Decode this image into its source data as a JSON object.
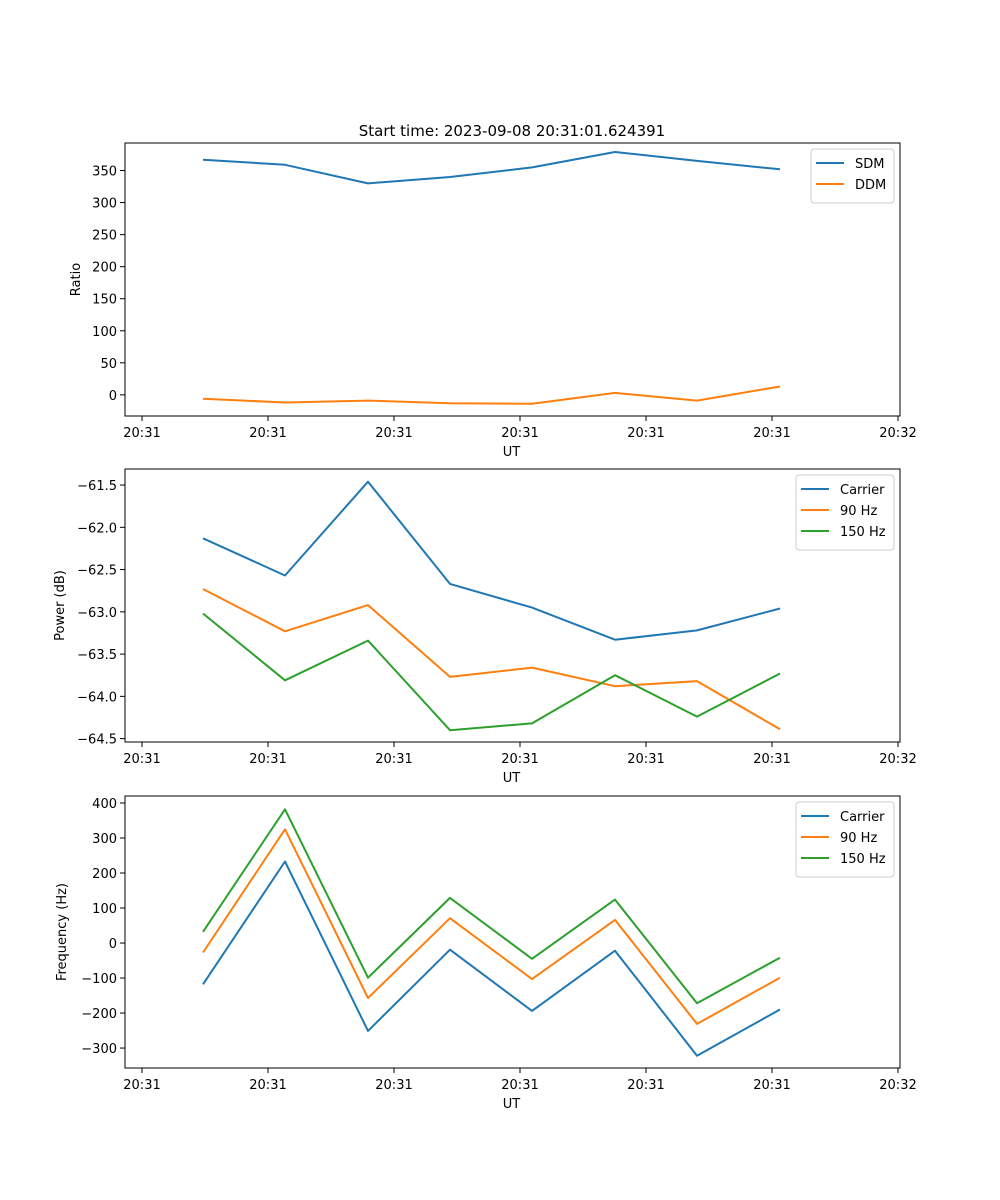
{
  "chart_data": [
    {
      "type": "line",
      "title": "Start time: 2023-09-08 20:31:01.624391",
      "xlabel": "UT",
      "ylabel": "Ratio",
      "xticklabels": [
        "20:31",
        "20:31",
        "20:31",
        "20:31",
        "20:31",
        "20:31",
        "20:32"
      ],
      "yticks": [
        0,
        50,
        100,
        150,
        200,
        250,
        300,
        350
      ],
      "ylim": [
        -33,
        393
      ],
      "legend": "top-right",
      "series": [
        {
          "name": "SDM",
          "color": "#1f77b4",
          "values": [
            367,
            359,
            330,
            340,
            355,
            379,
            365,
            352
          ]
        },
        {
          "name": "DDM",
          "color": "#ff7f0e",
          "values": [
            -6,
            -12,
            -9,
            -13,
            -14,
            3,
            -9,
            13
          ]
        }
      ]
    },
    {
      "type": "line",
      "title": "",
      "xlabel": "UT",
      "ylabel": "Power (dB)",
      "xticklabels": [
        "20:31",
        "20:31",
        "20:31",
        "20:31",
        "20:31",
        "20:31",
        "20:32"
      ],
      "yticks": [
        -61.5,
        -62.0,
        -62.5,
        -63.0,
        -63.5,
        -64.0,
        -64.5
      ],
      "yticklabels": [
        "−61.5",
        "−62.0",
        "−62.5",
        "−63.0",
        "−63.5",
        "−64.0",
        "−64.5"
      ],
      "ylim": [
        -64.54,
        -61.31
      ],
      "legend": "top-right",
      "series": [
        {
          "name": "Carrier",
          "color": "#1f77b4",
          "values": [
            -62.13,
            -62.57,
            -61.46,
            -62.67,
            -62.95,
            -63.33,
            -63.22,
            -62.96
          ]
        },
        {
          "name": "90 Hz",
          "color": "#ff7f0e",
          "values": [
            -62.73,
            -63.23,
            -62.92,
            -63.77,
            -63.66,
            -63.88,
            -63.82,
            -64.39
          ]
        },
        {
          "name": "150 Hz",
          "color": "#2ca02c",
          "values": [
            -63.02,
            -63.81,
            -63.34,
            -64.4,
            -64.32,
            -63.75,
            -64.24,
            -63.73
          ]
        }
      ]
    },
    {
      "type": "line",
      "title": "",
      "xlabel": "UT",
      "ylabel": "Frequency (Hz)",
      "xticklabels": [
        "20:31",
        "20:31",
        "20:31",
        "20:31",
        "20:31",
        "20:31",
        "20:32"
      ],
      "yticks": [
        400,
        300,
        200,
        100,
        0,
        -100,
        -200,
        -300
      ],
      "yticklabels": [
        "400",
        "300",
        "200",
        "100",
        "0",
        "−100",
        "−200",
        "−300"
      ],
      "ylim": [
        -357,
        420
      ],
      "legend": "top-right",
      "series": [
        {
          "name": "Carrier",
          "color": "#1f77b4",
          "values": [
            -118,
            233,
            -251,
            -19,
            -194,
            -22,
            -322,
            -190
          ]
        },
        {
          "name": "90 Hz",
          "color": "#ff7f0e",
          "values": [
            -27,
            325,
            -157,
            71,
            -103,
            66,
            -231,
            -99
          ]
        },
        {
          "name": "150 Hz",
          "color": "#2ca02c",
          "values": [
            32,
            382,
            -99,
            129,
            -45,
            124,
            -172,
            -42
          ]
        }
      ]
    }
  ]
}
